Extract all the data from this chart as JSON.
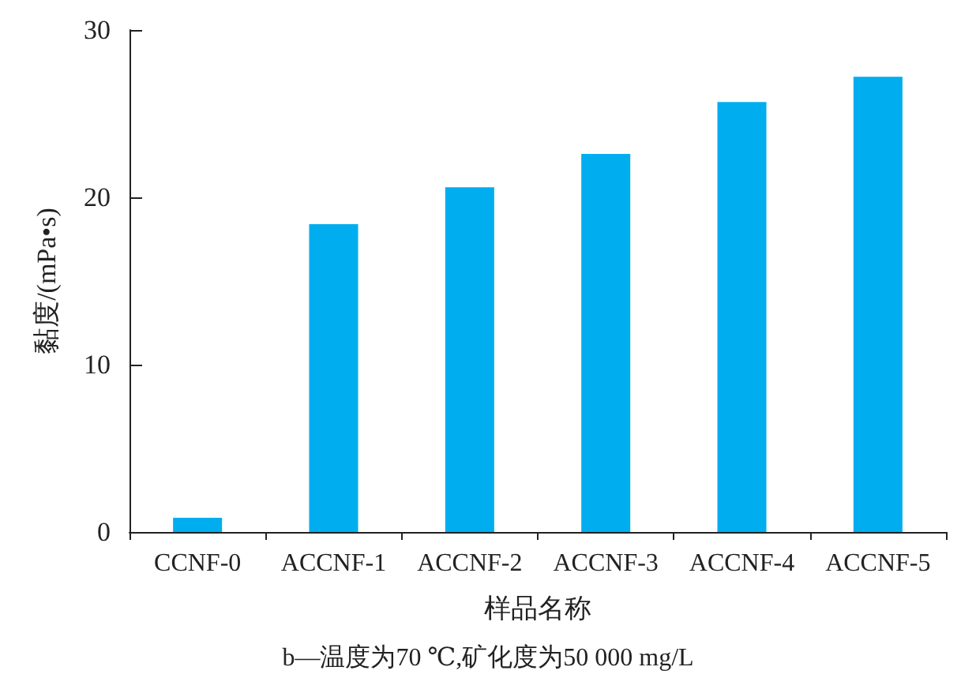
{
  "chart_data": {
    "type": "bar",
    "categories": [
      "CCNF-0",
      "ACCNF-1",
      "ACCNF-2",
      "ACCNF-3",
      "ACCNF-4",
      "ACCNF-5"
    ],
    "values": [
      0.85,
      18.4,
      20.6,
      22.6,
      25.7,
      27.2
    ],
    "color": "#00aeef",
    "ylim": [
      0,
      30
    ],
    "yticks": [
      0,
      10,
      20,
      30
    ],
    "xlabel": "样品名称",
    "ylabel": "黏度/(mPa•s)",
    "annotations": [
      "b—温度为70 ℃,矿化度为50 000 mg/L"
    ],
    "grid": false
  }
}
